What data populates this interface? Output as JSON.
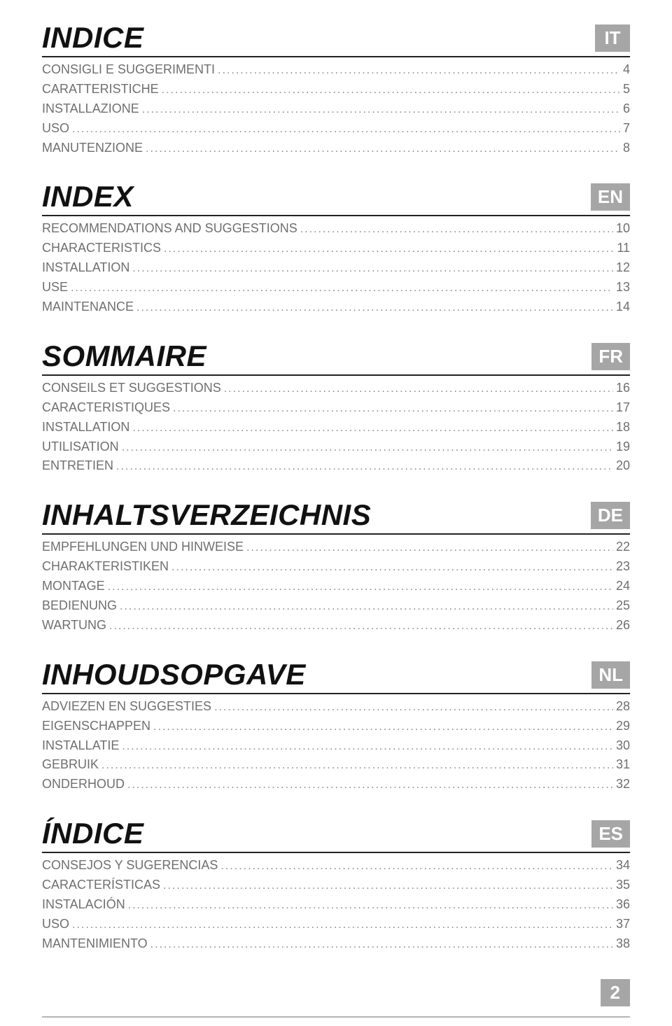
{
  "page_number": "2",
  "colors": {
    "badge_bg": "#a6a6a6",
    "badge_fg": "#ffffff",
    "title_fg": "#111111",
    "toc_fg": "#6f6f6f",
    "rule": "#222222",
    "footer_rule": "#b5b5b5"
  },
  "sections": [
    {
      "title": "INDICE",
      "lang": "IT",
      "items": [
        {
          "label": "CONSIGLI E SUGGERIMENTI",
          "page": "4"
        },
        {
          "label": "CARATTERISTICHE",
          "page": "5"
        },
        {
          "label": "INSTALLAZIONE",
          "page": "6"
        },
        {
          "label": "USO",
          "page": "7"
        },
        {
          "label": "MANUTENZIONE",
          "page": "8"
        }
      ]
    },
    {
      "title": "INDEX",
      "lang": "EN",
      "items": [
        {
          "label": "RECOMMENDATIONS AND SUGGESTIONS",
          "page": "10"
        },
        {
          "label": "CHARACTERISTICS",
          "page": "11"
        },
        {
          "label": "INSTALLATION",
          "page": "12"
        },
        {
          "label": "USE",
          "page": "13"
        },
        {
          "label": "MAINTENANCE",
          "page": "14"
        }
      ]
    },
    {
      "title": "SOMMAIRE",
      "lang": "FR",
      "items": [
        {
          "label": "CONSEILS ET SUGGESTIONS",
          "page": "16"
        },
        {
          "label": "CARACTERISTIQUES",
          "page": "17"
        },
        {
          "label": "INSTALLATION",
          "page": "18"
        },
        {
          "label": "UTILISATION",
          "page": "19"
        },
        {
          "label": "ENTRETIEN",
          "page": "20"
        }
      ]
    },
    {
      "title": "INHALTSVERZEICHNIS",
      "lang": "DE",
      "items": [
        {
          "label": "EMPFEHLUNGEN UND HINWEISE",
          "page": "22"
        },
        {
          "label": "CHARAKTERISTIKEN",
          "page": "23"
        },
        {
          "label": "MONTAGE",
          "page": "24"
        },
        {
          "label": "BEDIENUNG",
          "page": "25"
        },
        {
          "label": "WARTUNG",
          "page": "26"
        }
      ]
    },
    {
      "title": "INHOUDSOPGAVE",
      "lang": "NL",
      "items": [
        {
          "label": "ADVIEZEN EN SUGGESTIES",
          "page": "28"
        },
        {
          "label": "EIGENSCHAPPEN",
          "page": "29"
        },
        {
          "label": "INSTALLATIE",
          "page": "30"
        },
        {
          "label": "GEBRUIK",
          "page": "31"
        },
        {
          "label": "ONDERHOUD",
          "page": "32"
        }
      ]
    },
    {
      "title": "ÍNDICE",
      "lang": "ES",
      "items": [
        {
          "label": "CONSEJOS Y SUGERENCIAS",
          "page": "34"
        },
        {
          "label": "CARACTERÍSTICAS",
          "page": "35"
        },
        {
          "label": "INSTALACIÓN",
          "page": "36"
        },
        {
          "label": "USO",
          "page": "37"
        },
        {
          "label": "MANTENIMIENTO",
          "page": "38"
        }
      ]
    }
  ]
}
